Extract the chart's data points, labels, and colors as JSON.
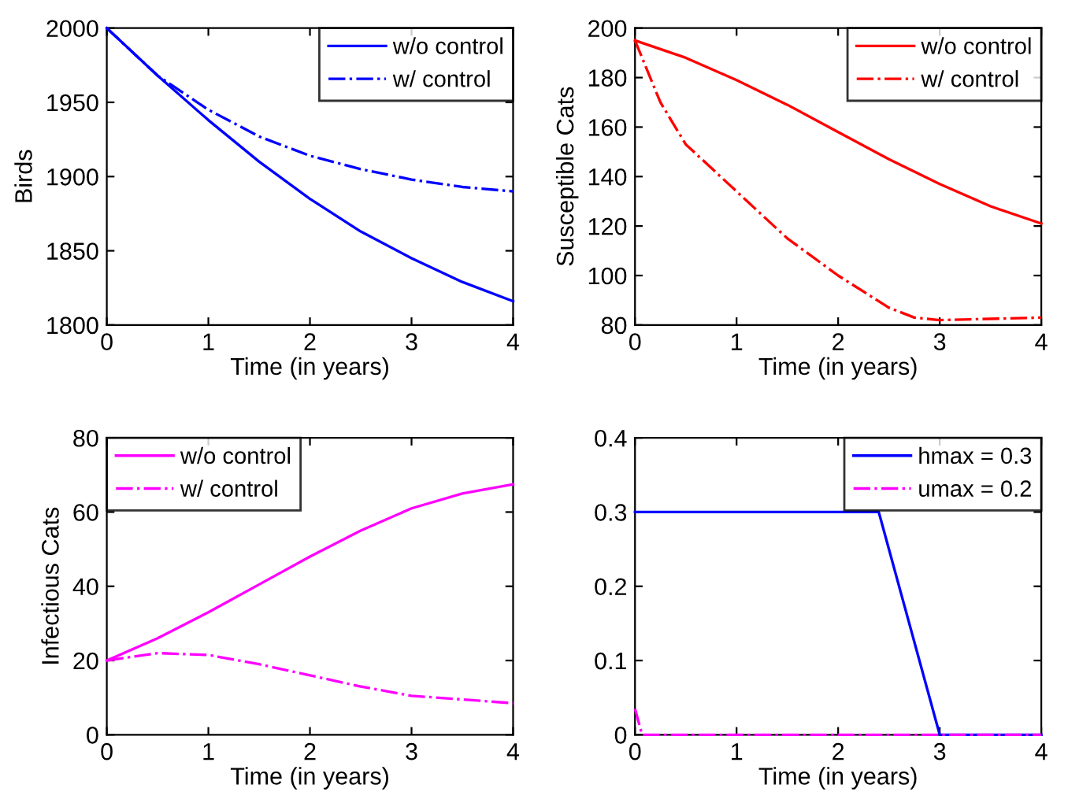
{
  "chart_data": [
    {
      "type": "line",
      "xlabel": "Time (in years)",
      "ylabel": "Birds",
      "xlim": [
        0,
        4
      ],
      "xticks": [
        0,
        1,
        2,
        3,
        4
      ],
      "ylim": [
        1800,
        2000
      ],
      "yticks": [
        1800,
        1850,
        1900,
        1950,
        2000
      ],
      "legend": "top right",
      "grid": false,
      "series": [
        {
          "name": "w/o control",
          "color": "#0000ff",
          "line_style": "solid",
          "x": [
            0,
            0.5,
            1,
            1.5,
            2,
            2.5,
            3,
            3.5,
            4
          ],
          "values": [
            2000,
            1968,
            1938,
            1910,
            1885,
            1863,
            1845,
            1829,
            1816
          ]
        },
        {
          "name": "w/ control",
          "color": "#0000ff",
          "line_style": "dashdot",
          "x": [
            0,
            0.5,
            1,
            1.5,
            2,
            2.5,
            3,
            3.5,
            4
          ],
          "values": [
            2000,
            1968,
            1945,
            1927,
            1914,
            1905,
            1898,
            1893,
            1890
          ]
        }
      ]
    },
    {
      "type": "line",
      "xlabel": "Time (in years)",
      "ylabel": "Susceptible Cats",
      "xlim": [
        0,
        4
      ],
      "xticks": [
        0,
        1,
        2,
        3,
        4
      ],
      "ylim": [
        80,
        200
      ],
      "yticks": [
        80,
        100,
        120,
        140,
        160,
        180,
        200
      ],
      "legend": "top right",
      "grid": false,
      "series": [
        {
          "name": "w/o control",
          "color": "#ff0000",
          "line_style": "solid",
          "x": [
            0,
            0.5,
            1,
            1.5,
            2,
            2.5,
            3,
            3.5,
            4
          ],
          "values": [
            195,
            188,
            179,
            169,
            158,
            147,
            137,
            128,
            121
          ]
        },
        {
          "name": "w/ control",
          "color": "#ff0000",
          "line_style": "dashdot",
          "x": [
            0,
            0.25,
            0.5,
            1,
            1.5,
            2,
            2.5,
            2.75,
            3,
            3.5,
            4
          ],
          "values": [
            195,
            170,
            153,
            134,
            115,
            100,
            87,
            83,
            82,
            82.5,
            83
          ]
        }
      ]
    },
    {
      "type": "line",
      "xlabel": "Time (in years)",
      "ylabel": "Infectious Cats",
      "xlim": [
        0,
        4
      ],
      "xticks": [
        0,
        1,
        2,
        3,
        4
      ],
      "ylim": [
        0,
        80
      ],
      "yticks": [
        0,
        20,
        40,
        60,
        80
      ],
      "legend": "top left",
      "grid": false,
      "series": [
        {
          "name": "w/o control",
          "color": "#ff00ff",
          "line_style": "solid",
          "x": [
            0,
            0.5,
            1,
            1.5,
            2,
            2.5,
            3,
            3.5,
            4
          ],
          "values": [
            20,
            26,
            33,
            40.5,
            48,
            55,
            61,
            65,
            67.5
          ]
        },
        {
          "name": "w/ control",
          "color": "#ff00ff",
          "line_style": "dashdot",
          "x": [
            0,
            0.5,
            1,
            1.5,
            2,
            2.5,
            3,
            3.5,
            4
          ],
          "values": [
            20,
            22,
            21.5,
            19,
            16,
            13,
            10.5,
            9.5,
            8.5
          ]
        }
      ]
    },
    {
      "type": "line",
      "xlabel": "Time (in years)",
      "xlim": [
        0,
        4
      ],
      "xticks": [
        0,
        1,
        2,
        3,
        4
      ],
      "ylim": [
        0,
        0.4
      ],
      "yticks": [
        0,
        0.1,
        0.2,
        0.3,
        0.4
      ],
      "legend": "top right",
      "grid": false,
      "series": [
        {
          "name": "hmax = 0.3",
          "color": "#0000ff",
          "line_style": "solid",
          "x": [
            0,
            2.4,
            3,
            4
          ],
          "values": [
            0.3,
            0.3,
            0,
            0
          ]
        },
        {
          "name": "umax = 0.2",
          "color": "#ff00ff",
          "line_style": "dashdot",
          "x": [
            0,
            0.07,
            4
          ],
          "values": [
            0.035,
            0,
            0
          ]
        }
      ]
    }
  ]
}
